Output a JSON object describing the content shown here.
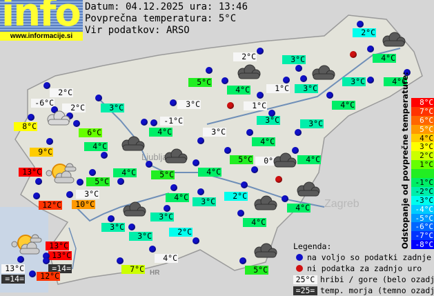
{
  "logo": {
    "text": "info",
    "url": "www.informacije.si"
  },
  "header": {
    "date_line": "Datum: 04.12.2025 ura: 13:46",
    "avg_line": "Povprečna temperatura: 5°C",
    "source_line": "Vir podatkov: ARSO"
  },
  "average_temp": 5,
  "map_labels": {
    "zagreb": "Zagreb",
    "ljubljana": "Ljubljana",
    "hr": "HR"
  },
  "stations": [
    {
      "temp": "2°C",
      "kind": "mountain",
      "v": 2
    },
    {
      "temp": "-6°C",
      "kind": "mountain",
      "v": -6
    },
    {
      "temp": "2°C",
      "kind": "mountain",
      "v": 2
    },
    {
      "temp": "8°C",
      "kind": "normal",
      "v": 8
    },
    {
      "temp": "6°C",
      "kind": "normal",
      "v": 6
    },
    {
      "temp": "3°C",
      "kind": "normal",
      "v": 3
    },
    {
      "temp": "3°C",
      "kind": "mountain",
      "v": 3
    },
    {
      "temp": "-1°C",
      "kind": "mountain",
      "v": -1
    },
    {
      "temp": "4°C",
      "kind": "normal",
      "v": 4
    },
    {
      "temp": "3°C",
      "kind": "mountain",
      "v": 3
    },
    {
      "temp": "9°C",
      "kind": "normal",
      "v": 9
    },
    {
      "temp": "4°C",
      "kind": "normal",
      "v": 4
    },
    {
      "temp": "13°C",
      "kind": "normal",
      "v": 13
    },
    {
      "temp": "4°C",
      "kind": "normal",
      "v": 4
    },
    {
      "temp": "5°C",
      "kind": "normal",
      "v": 5
    },
    {
      "temp": "5°C",
      "kind": "normal",
      "v": 5
    },
    {
      "temp": "4°C",
      "kind": "normal",
      "v": 4
    },
    {
      "temp": "12°C",
      "kind": "normal",
      "v": 12
    },
    {
      "temp": "3°C",
      "kind": "mountain",
      "v": 3
    },
    {
      "temp": "10°C",
      "kind": "normal",
      "v": 10
    },
    {
      "temp": "4°C",
      "kind": "normal",
      "v": 4
    },
    {
      "temp": "3°C",
      "kind": "normal",
      "v": 3
    },
    {
      "temp": "3°C",
      "kind": "normal",
      "v": 3
    },
    {
      "temp": "3°C",
      "kind": "normal",
      "v": 3
    },
    {
      "temp": "3°C",
      "kind": "normal",
      "v": 3
    },
    {
      "temp": "2°C",
      "kind": "normal",
      "v": 2
    },
    {
      "temp": "4°C",
      "kind": "normal",
      "v": 4
    },
    {
      "temp": "4°C",
      "kind": "normal",
      "v": 4
    },
    {
      "temp": "2°C",
      "kind": "normal",
      "v": 2
    },
    {
      "temp": "4°C",
      "kind": "mountain",
      "v": 4
    },
    {
      "temp": "7°C",
      "kind": "normal",
      "v": 7
    },
    {
      "temp": "13°C",
      "kind": "normal",
      "v": 13
    },
    {
      "temp": "13°C",
      "kind": "normal",
      "v": 13
    },
    {
      "temp": "=14=",
      "kind": "sea",
      "v": 14
    },
    {
      "temp": "13°C",
      "kind": "mountain",
      "v": 13
    },
    {
      "temp": "=14=",
      "kind": "sea",
      "v": 14
    },
    {
      "temp": "12°C",
      "kind": "normal",
      "v": 12
    },
    {
      "temp": "5°C",
      "kind": "normal",
      "v": 5
    },
    {
      "temp": "2°C",
      "kind": "normal",
      "v": 2
    },
    {
      "temp": "4°C",
      "kind": "normal",
      "v": 4
    },
    {
      "temp": "4°C",
      "kind": "normal",
      "v": 4
    },
    {
      "temp": "3°C",
      "kind": "normal",
      "v": 3
    },
    {
      "temp": "2°C",
      "kind": "mountain",
      "v": 2
    },
    {
      "temp": "3°C",
      "kind": "normal",
      "v": 3
    },
    {
      "temp": "3°C",
      "kind": "normal",
      "v": 3
    },
    {
      "temp": "4°C",
      "kind": "normal",
      "v": 4
    },
    {
      "temp": "5°C",
      "kind": "normal",
      "v": 5
    },
    {
      "temp": "1°C",
      "kind": "mountain",
      "v": 1
    },
    {
      "temp": "1°C",
      "kind": "mountain",
      "v": 1
    },
    {
      "temp": "4°C",
      "kind": "normal",
      "v": 4
    },
    {
      "temp": "3°C",
      "kind": "normal",
      "v": 3
    },
    {
      "temp": "3°C",
      "kind": "normal",
      "v": 3
    },
    {
      "temp": "4°C",
      "kind": "normal",
      "v": 4
    },
    {
      "temp": "5°C",
      "kind": "normal",
      "v": 5
    },
    {
      "temp": "0°C",
      "kind": "mountain",
      "v": 0
    },
    {
      "temp": "4°C",
      "kind": "normal",
      "v": 4
    }
  ],
  "markers_no_data_count": 3,
  "marker_colors": {
    "available": "#1010c8",
    "no_data": "#d01010"
  },
  "weather_icons": [
    "cloudy",
    "cloudy",
    "cloudy",
    "cloudy",
    "cloudy",
    "cloudy",
    "cloudy",
    "cloudy",
    "cloudy",
    "cloudy",
    "cloudy-drizzle",
    "partly-sunny",
    "partly-sunny"
  ],
  "scale": {
    "title": "Odstopanje od povprečne temperature:",
    "steps": [
      {
        "label": "8°C",
        "color": "#ff0000"
      },
      {
        "label": "7°C",
        "color": "#ff3300"
      },
      {
        "label": "6°C",
        "color": "#ff6600"
      },
      {
        "label": "5°C",
        "color": "#ff9900"
      },
      {
        "label": "4°C",
        "color": "#ffcc00"
      },
      {
        "label": "3°C",
        "color": "#ffff00"
      },
      {
        "label": "2°C",
        "color": "#ccff00"
      },
      {
        "label": "1°C",
        "color": "#66ff00"
      },
      {
        "label": "",
        "color": "#22ee22"
      },
      {
        "label": "-1°C",
        "color": "#00ee66"
      },
      {
        "label": "-2°C",
        "color": "#00eeaa"
      },
      {
        "label": "-3°C",
        "color": "#00ffee"
      },
      {
        "label": "-4°C",
        "color": "#00ccff"
      },
      {
        "label": "-5°C",
        "color": "#0099ff"
      },
      {
        "label": "-6°C",
        "color": "#0066ff"
      },
      {
        "label": "-7°C",
        "color": "#0033ff"
      },
      {
        "label": "-8°C",
        "color": "#0000ff"
      }
    ]
  },
  "legend": {
    "title": "Legenda:",
    "available": "na voljo so podatki zadnje ure",
    "no_data": "ni podatka za zadnjo uro",
    "mountain_sample": "25°C",
    "mountain_text": "hribi / gore (belo ozadje)",
    "sea_sample": "=25=",
    "sea_text": "temp. morja (temno ozadje)"
  }
}
